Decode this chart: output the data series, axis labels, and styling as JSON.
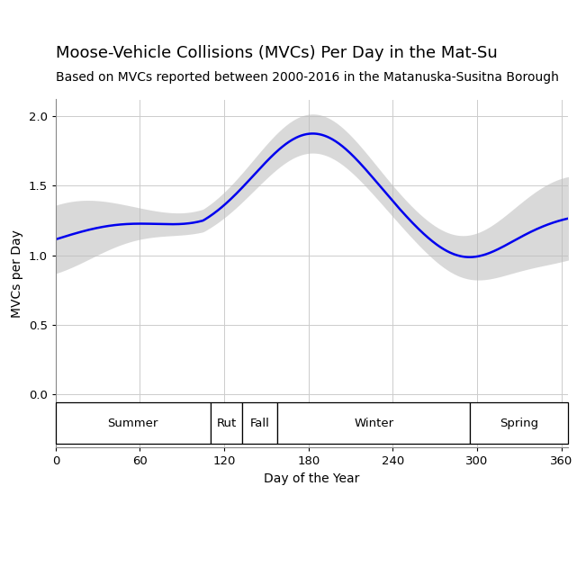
{
  "title": "Moose-Vehicle Collisions (MVCs) Per Day in the Mat-Su",
  "subtitle": "Based on MVCs reported between 2000-2016 in the Matanuska-Susitna Borough",
  "xlabel": "Day of the Year",
  "ylabel": "MVCs per Day",
  "title_fontsize": 13,
  "subtitle_fontsize": 10,
  "label_fontsize": 10,
  "tick_fontsize": 9.5,
  "line_color": "#0000EE",
  "band_color": "#BBBBBB",
  "band_alpha": 0.55,
  "background_color": "#FFFFFF",
  "grid_color": "#CCCCCC",
  "ylim": [
    -0.38,
    2.12
  ],
  "xlim": [
    0,
    365
  ],
  "yticks": [
    0.0,
    0.5,
    1.0,
    1.5,
    2.0
  ],
  "xticks": [
    0,
    60,
    120,
    180,
    240,
    300,
    360
  ],
  "seasons": [
    {
      "label": "Summer",
      "x_start": 0,
      "x_end": 110
    },
    {
      "label": "Rut",
      "x_start": 110,
      "x_end": 133
    },
    {
      "label": "Fall",
      "x_start": 133,
      "x_end": 158
    },
    {
      "label": "Winter",
      "x_start": 158,
      "x_end": 295
    },
    {
      "label": "Spring",
      "x_start": 295,
      "x_end": 365
    }
  ]
}
